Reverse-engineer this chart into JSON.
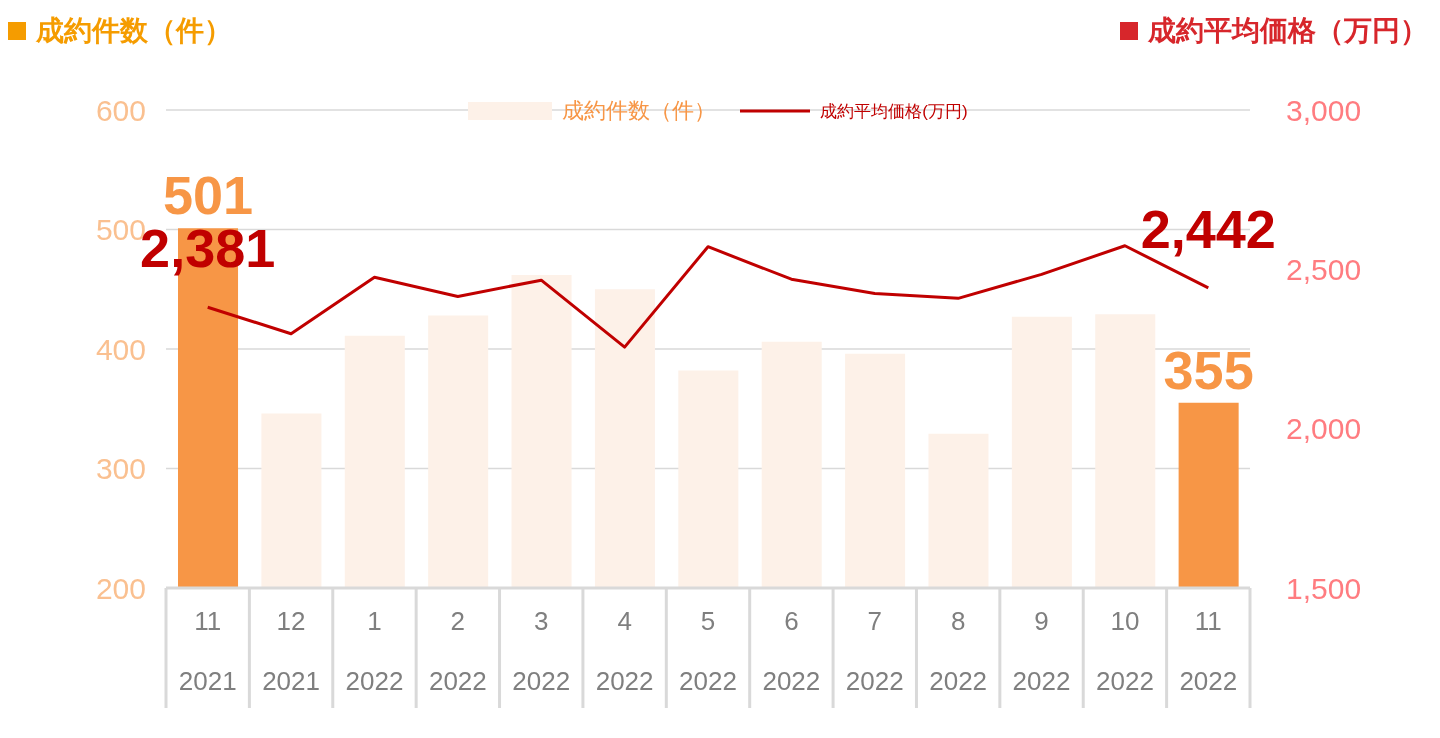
{
  "chart_data": {
    "type": "bar",
    "ylabel": "成約件数（件）",
    "y2label": "成約平均価格（万円）",
    "categories": [
      "11\n2021",
      "12\n2021",
      "1\n2022",
      "2\n2022",
      "3\n2022",
      "4\n2022",
      "5\n2022",
      "6\n2022",
      "7\n2022",
      "8\n2022",
      "9\n2022",
      "10\n2022",
      "11\n2022"
    ],
    "series": [
      {
        "name": "成約件数（件）",
        "color": "#fdf1e8",
        "colors": [
          "#f79646",
          "#fdf1e8",
          "#fdf1e8",
          "#fdf1e8",
          "#fdf1e8",
          "#fdf1e8",
          "#fdf1e8",
          "#fdf1e8",
          "#fdf1e8",
          "#fdf1e8",
          "#fdf1e8",
          "#fdf1e8",
          "#f79646"
        ],
        "values": [
          501,
          346,
          411,
          428,
          462,
          450,
          382,
          406,
          396,
          329,
          427,
          429,
          355
        ],
        "value_labels": [
          "501",
          null,
          null,
          null,
          null,
          null,
          null,
          null,
          null,
          null,
          null,
          null,
          "355"
        ]
      },
      {
        "type": "line",
        "name": "成約平均価格(万円)",
        "axis": "y2",
        "color": "#c00000",
        "values": [
          2381,
          2298,
          2475,
          2415,
          2466,
          2256,
          2571,
          2469,
          2424,
          2409,
          2484,
          2574,
          2442
        ],
        "value_labels": [
          "2,381",
          null,
          null,
          null,
          null,
          null,
          null,
          null,
          null,
          null,
          null,
          null,
          "2,442"
        ]
      }
    ],
    "ylim": [
      200,
      600
    ],
    "yticks": [
      200,
      300,
      400,
      500,
      600
    ],
    "y2lim": [
      1500,
      3000
    ],
    "y2ticks": [
      {
        "value": 1500,
        "label": "1,500"
      },
      {
        "value": 2000,
        "label": "2,000"
      },
      {
        "value": 2500,
        "label": "2,500"
      },
      {
        "value": 3000,
        "label": "3,000"
      }
    ],
    "grid": "y",
    "legend": "top"
  }
}
